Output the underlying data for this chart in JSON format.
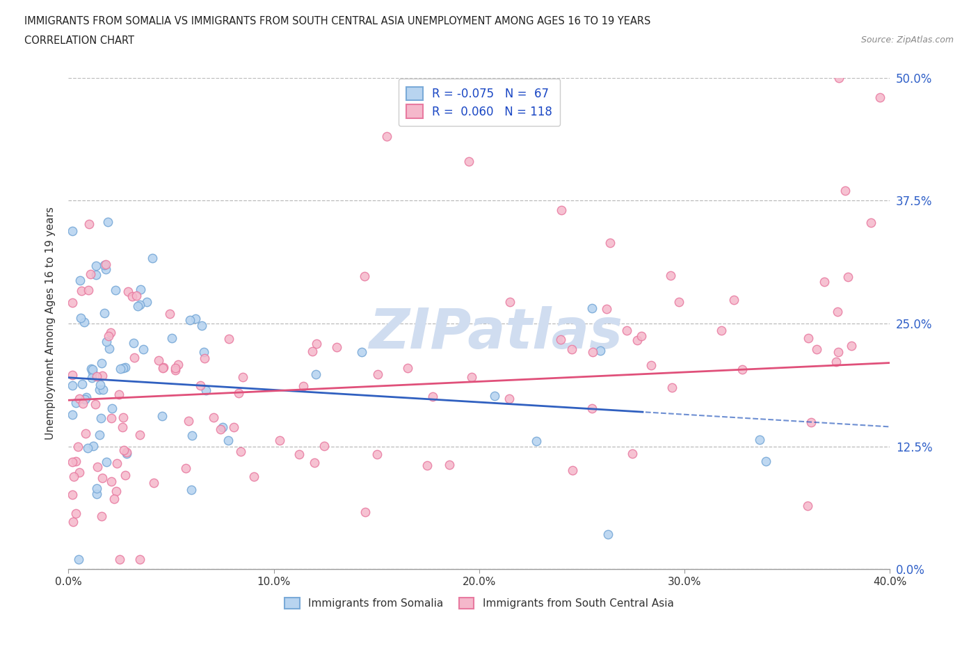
{
  "title_line1": "IMMIGRANTS FROM SOMALIA VS IMMIGRANTS FROM SOUTH CENTRAL ASIA UNEMPLOYMENT AMONG AGES 16 TO 19 YEARS",
  "title_line2": "CORRELATION CHART",
  "source_text": "Source: ZipAtlas.com",
  "ylabel": "Unemployment Among Ages 16 to 19 years",
  "xlim": [
    0.0,
    0.4
  ],
  "ylim": [
    0.0,
    0.5
  ],
  "yticks": [
    0.0,
    0.125,
    0.25,
    0.375,
    0.5
  ],
  "ytick_labels": [
    "0.0%",
    "12.5%",
    "25.0%",
    "37.5%",
    "50.0%"
  ],
  "xticks": [
    0.0,
    0.1,
    0.2,
    0.3,
    0.4
  ],
  "xtick_labels": [
    "0.0%",
    "10.0%",
    "20.0%",
    "30.0%",
    "40.0%"
  ],
  "grid_color": "#bbbbbb",
  "background_color": "#ffffff",
  "somalia_fill": "#b8d4f0",
  "somalia_edge": "#7aaad8",
  "sca_fill": "#f5b8cb",
  "sca_edge": "#e87aa0",
  "somalia_line_color": "#3060c0",
  "sca_line_color": "#e0507a",
  "watermark_color": "#d0ddf0",
  "somalia_R": -0.075,
  "somalia_N": 67,
  "sca_R": 0.06,
  "sca_N": 118,
  "trend_somalia_x0": 0.0,
  "trend_somalia_y0": 0.195,
  "trend_somalia_x1": 0.4,
  "trend_somalia_y1": 0.145,
  "trend_somalia_solid_end": 0.28,
  "trend_sca_x0": 0.0,
  "trend_sca_y0": 0.172,
  "trend_sca_x1": 0.4,
  "trend_sca_y1": 0.21
}
